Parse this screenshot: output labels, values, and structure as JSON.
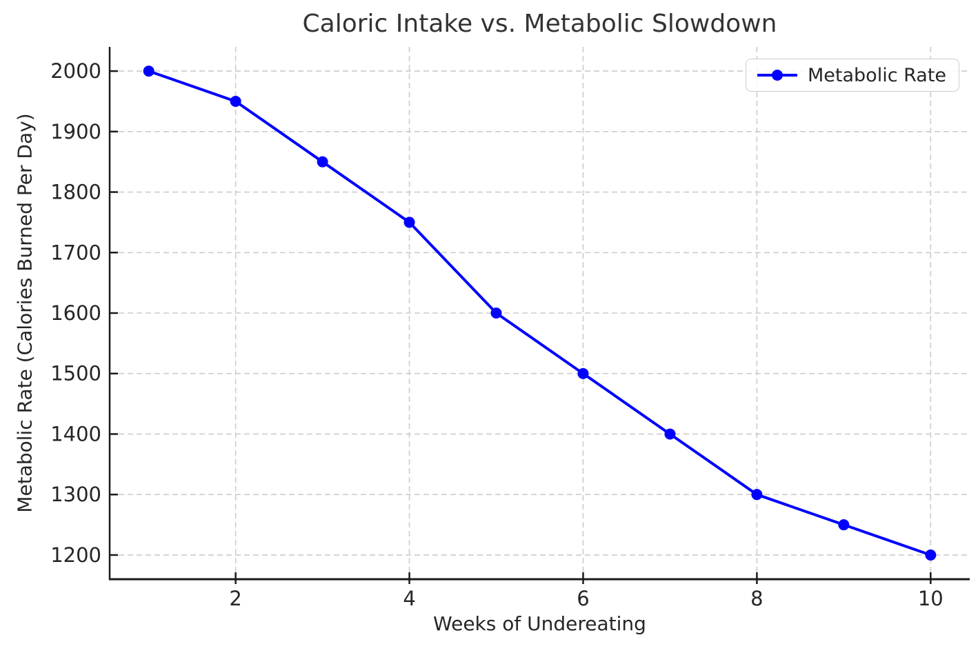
{
  "chart_data": {
    "type": "line",
    "title": "Caloric Intake vs. Metabolic Slowdown",
    "xlabel": "Weeks of Undereating",
    "ylabel": "Metabolic Rate (Calories Burned Per Day)",
    "x": [
      1,
      2,
      3,
      4,
      5,
      6,
      7,
      8,
      9,
      10
    ],
    "series": [
      {
        "name": "Metabolic Rate",
        "values": [
          2000,
          1950,
          1850,
          1750,
          1600,
          1500,
          1400,
          1300,
          1250,
          1200
        ]
      }
    ],
    "x_ticks": [
      2,
      4,
      6,
      8,
      10
    ],
    "y_ticks": [
      1200,
      1300,
      1400,
      1500,
      1600,
      1700,
      1800,
      1900,
      2000
    ],
    "xlim": [
      0.55,
      10.45
    ],
    "ylim": [
      1160,
      2040
    ],
    "grid": true,
    "grid_style": "dashed",
    "legend_position": "upper right",
    "colors": {
      "line": "#0000ff",
      "marker": "#0000ff",
      "grid": "#cccccc",
      "spine": "#1a1a1a",
      "text": "#262626",
      "title": "#333333",
      "background": "#ffffff"
    }
  }
}
